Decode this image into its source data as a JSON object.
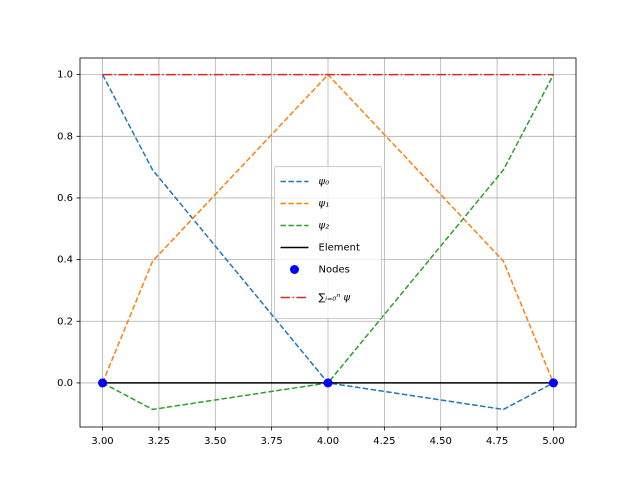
{
  "chart_data": {
    "type": "line",
    "x": [
      3,
      3.222,
      4,
      4.778,
      5
    ],
    "series": [
      {
        "name": "ψ₀",
        "color": "#1f77b4",
        "style": "dashed",
        "values": [
          1,
          0.691,
          0,
          -0.086,
          0
        ]
      },
      {
        "name": "ψ₁",
        "color": "#ff7f0e",
        "style": "dashed",
        "values": [
          0,
          0.395,
          1,
          0.395,
          0
        ]
      },
      {
        "name": "ψ₂",
        "color": "#2ca02c",
        "style": "dashed",
        "values": [
          0,
          -0.086,
          0,
          0.691,
          1
        ]
      },
      {
        "name": "Element",
        "color": "#000000",
        "style": "solid",
        "values": [
          0,
          0,
          0,
          0,
          0
        ]
      },
      {
        "name": "Nodes",
        "color": "#0000ff",
        "style": "markers",
        "values": [
          0,
          null,
          0,
          null,
          0
        ]
      },
      {
        "name": "∑ᵢ₌₀ⁿ ψ",
        "color": "#d62728",
        "style": "dashdot",
        "values": [
          1,
          1,
          1,
          1,
          1
        ]
      }
    ],
    "xlim": [
      2.9,
      5.1
    ],
    "ylim": [
      -0.143,
      1.054
    ],
    "xticks": [
      {
        "value": 3,
        "label": "3.00"
      },
      {
        "value": 3.25,
        "label": "3.25"
      },
      {
        "value": 3.5,
        "label": "3.50"
      },
      {
        "value": 3.75,
        "label": "3.75"
      },
      {
        "value": 4,
        "label": "4.00"
      },
      {
        "value": 4.25,
        "label": "4.25"
      },
      {
        "value": 4.5,
        "label": "4.50"
      },
      {
        "value": 4.75,
        "label": "4.75"
      },
      {
        "value": 5,
        "label": "5.00"
      }
    ],
    "yticks": [
      {
        "value": 0,
        "label": "0.0"
      },
      {
        "value": 0.2,
        "label": "0.2"
      },
      {
        "value": 0.4,
        "label": "0.4"
      },
      {
        "value": 0.6,
        "label": "0.6"
      },
      {
        "value": 0.8,
        "label": "0.8"
      },
      {
        "value": 1,
        "label": "1.0"
      }
    ],
    "grid": true,
    "legend": "center"
  }
}
